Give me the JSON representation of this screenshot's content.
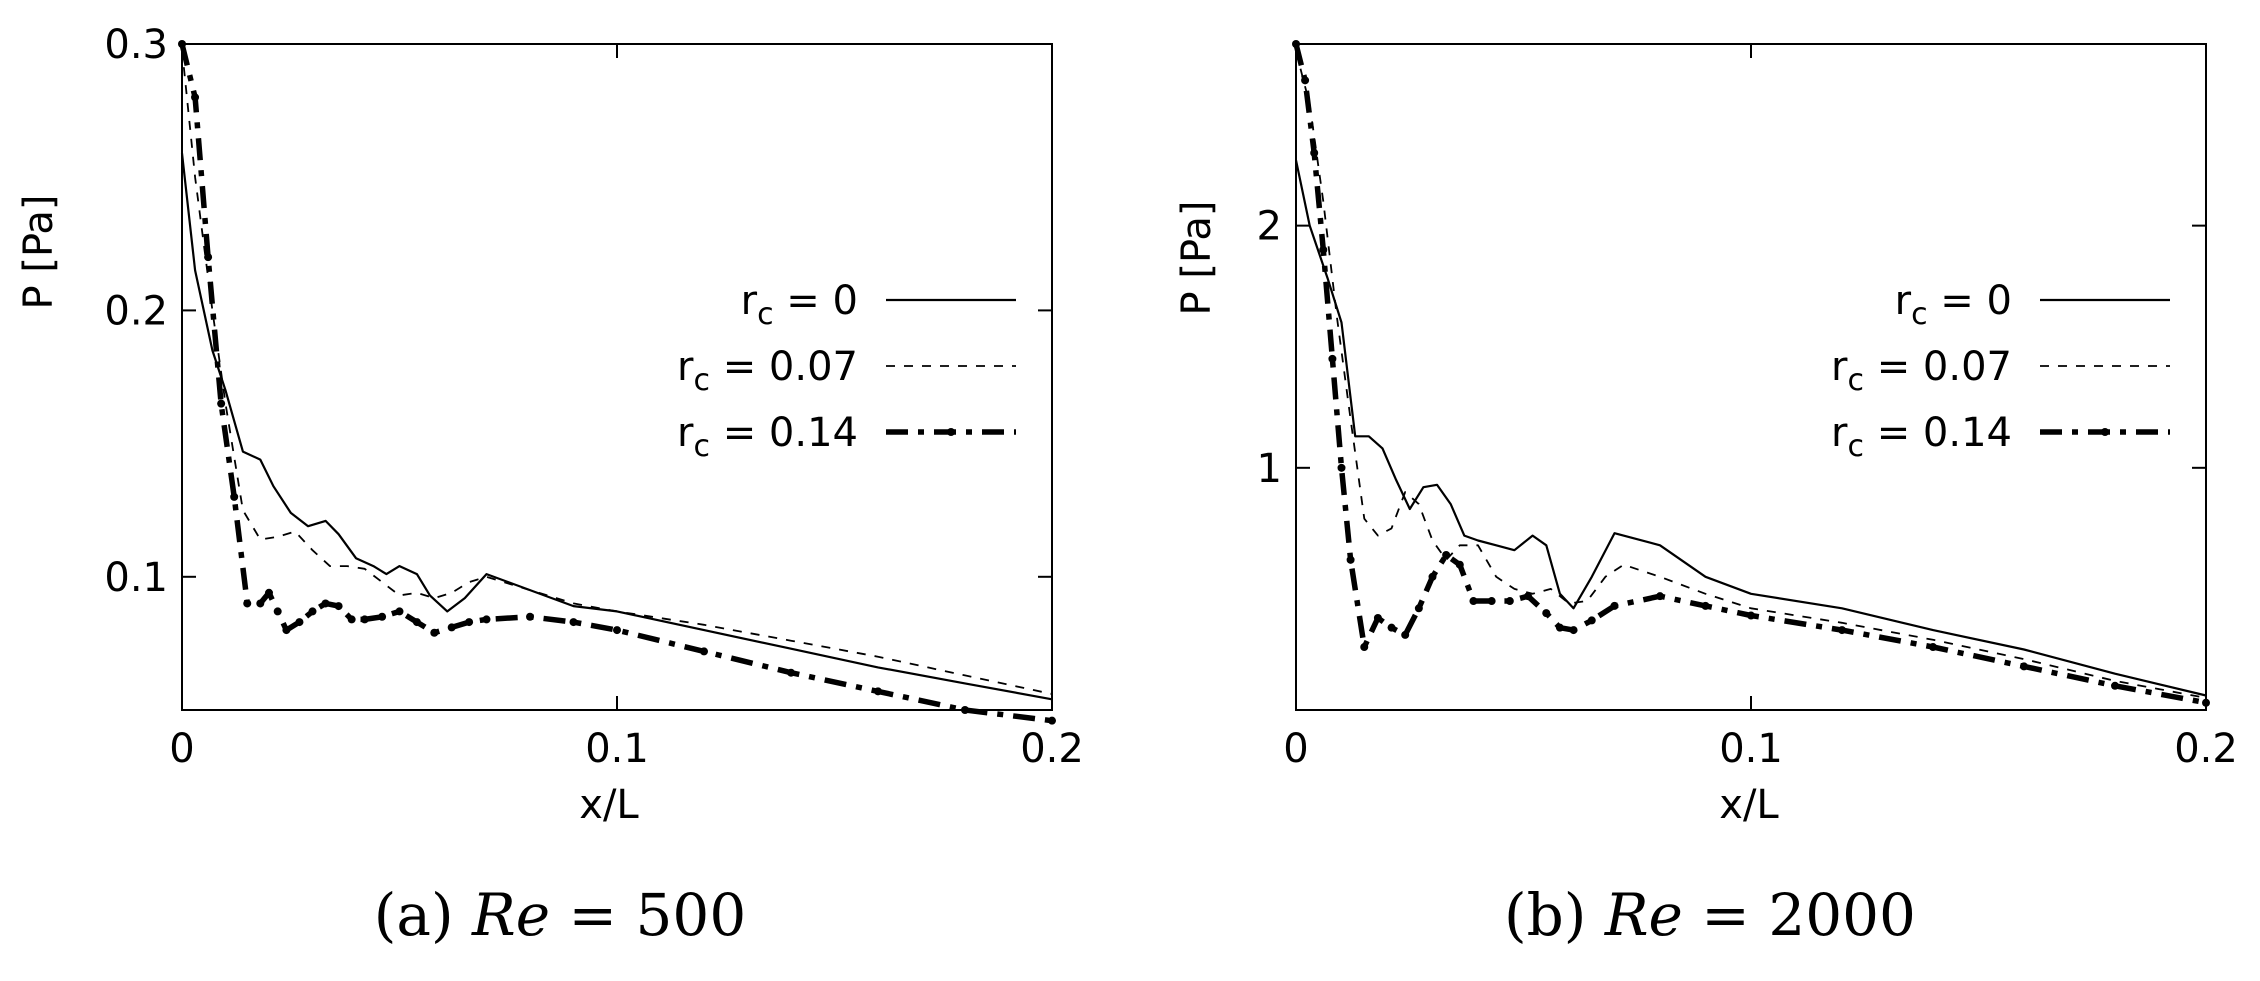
{
  "chart_data": [
    {
      "type": "line",
      "caption": {
        "label": "(a)",
        "variable": "Re",
        "equals": "=",
        "value": "500"
      },
      "xlabel": "x/L",
      "ylabel": "P [Pa]",
      "xlim": [
        0,
        0.2
      ],
      "ylim": [
        0.05,
        0.3
      ],
      "xticks": [
        0,
        0.1,
        0.2
      ],
      "xtick_labels": [
        "0",
        "0.1",
        "0.2"
      ],
      "yticks": [
        0.1,
        0.2,
        0.3
      ],
      "ytick_labels": [
        "0.1",
        "0.2",
        "0.3"
      ],
      "legend_position": "center-right",
      "series": [
        {
          "name": "r_c = 0",
          "style": "solid",
          "x": [
            0,
            0.003,
            0.007,
            0.01,
            0.014,
            0.018,
            0.021,
            0.025,
            0.029,
            0.033,
            0.036,
            0.04,
            0.044,
            0.047,
            0.05,
            0.054,
            0.057,
            0.061,
            0.065,
            0.07,
            0.08,
            0.09,
            0.1,
            0.12,
            0.14,
            0.16,
            0.18,
            0.2
          ],
          "y": [
            0.259,
            0.215,
            0.185,
            0.17,
            0.147,
            0.144,
            0.134,
            0.124,
            0.119,
            0.121,
            0.116,
            0.107,
            0.104,
            0.101,
            0.104,
            0.101,
            0.093,
            0.087,
            0.092,
            0.101,
            0.095,
            0.089,
            0.087,
            0.08,
            0.073,
            0.066,
            0.06,
            0.054
          ]
        },
        {
          "name": "r_c = 0.07",
          "style": "dashed",
          "x": [
            0,
            0.003,
            0.007,
            0.01,
            0.014,
            0.018,
            0.022,
            0.026,
            0.03,
            0.034,
            0.038,
            0.042,
            0.046,
            0.05,
            0.054,
            0.058,
            0.062,
            0.066,
            0.07,
            0.08,
            0.09,
            0.1,
            0.12,
            0.14,
            0.16,
            0.18,
            0.2
          ],
          "y": [
            0.298,
            0.25,
            0.2,
            0.165,
            0.125,
            0.114,
            0.115,
            0.117,
            0.11,
            0.104,
            0.104,
            0.103,
            0.098,
            0.093,
            0.094,
            0.092,
            0.094,
            0.098,
            0.1,
            0.095,
            0.09,
            0.087,
            0.082,
            0.076,
            0.07,
            0.063,
            0.056
          ]
        },
        {
          "name": "r_c = 0.14",
          "style": "dash-dot-points",
          "x": [
            0,
            0.003,
            0.006,
            0.009,
            0.012,
            0.015,
            0.018,
            0.02,
            0.022,
            0.024,
            0.027,
            0.03,
            0.033,
            0.036,
            0.039,
            0.042,
            0.046,
            0.05,
            0.054,
            0.058,
            0.062,
            0.066,
            0.07,
            0.08,
            0.09,
            0.1,
            0.12,
            0.14,
            0.16,
            0.18,
            0.2
          ],
          "y": [
            0.3,
            0.28,
            0.22,
            0.165,
            0.13,
            0.09,
            0.09,
            0.094,
            0.087,
            0.08,
            0.083,
            0.087,
            0.09,
            0.089,
            0.084,
            0.084,
            0.085,
            0.087,
            0.083,
            0.079,
            0.081,
            0.083,
            0.084,
            0.085,
            0.083,
            0.08,
            0.072,
            0.064,
            0.057,
            0.05,
            0.046
          ]
        }
      ]
    },
    {
      "type": "line",
      "caption": {
        "label": "(b)",
        "variable": "Re",
        "equals": "=",
        "value": "2000"
      },
      "xlabel": "x/L",
      "ylabel": "P [Pa]",
      "xlim": [
        0,
        0.2
      ],
      "ylim": [
        0,
        2.75
      ],
      "xticks": [
        0,
        0.1,
        0.2
      ],
      "xtick_labels": [
        "0",
        "0.1",
        "0.2"
      ],
      "yticks": [
        1,
        2
      ],
      "ytick_labels": [
        "1",
        "2"
      ],
      "legend_position": "center-right",
      "series": [
        {
          "name": "r_c = 0",
          "style": "solid",
          "x": [
            0,
            0.003,
            0.007,
            0.01,
            0.013,
            0.016,
            0.019,
            0.022,
            0.025,
            0.028,
            0.031,
            0.034,
            0.037,
            0.04,
            0.044,
            0.048,
            0.052,
            0.055,
            0.058,
            0.061,
            0.065,
            0.07,
            0.08,
            0.09,
            0.1,
            0.12,
            0.14,
            0.16,
            0.18,
            0.2
          ],
          "y": [
            2.27,
            2.0,
            1.78,
            1.6,
            1.13,
            1.13,
            1.08,
            0.95,
            0.83,
            0.92,
            0.93,
            0.85,
            0.72,
            0.7,
            0.68,
            0.66,
            0.72,
            0.68,
            0.48,
            0.42,
            0.55,
            0.73,
            0.68,
            0.55,
            0.48,
            0.42,
            0.33,
            0.25,
            0.15,
            0.06
          ]
        },
        {
          "name": "r_c = 0.07",
          "style": "dashed",
          "x": [
            0,
            0.003,
            0.006,
            0.009,
            0.012,
            0.015,
            0.018,
            0.021,
            0.024,
            0.027,
            0.03,
            0.033,
            0.036,
            0.04,
            0.044,
            0.048,
            0.052,
            0.056,
            0.06,
            0.064,
            0.068,
            0.072,
            0.08,
            0.09,
            0.1,
            0.12,
            0.14,
            0.16,
            0.18,
            0.2
          ],
          "y": [
            2.72,
            2.5,
            2.1,
            1.62,
            1.2,
            0.79,
            0.72,
            0.75,
            0.9,
            0.85,
            0.7,
            0.62,
            0.68,
            0.68,
            0.55,
            0.5,
            0.48,
            0.5,
            0.44,
            0.45,
            0.55,
            0.6,
            0.55,
            0.48,
            0.42,
            0.36,
            0.29,
            0.21,
            0.12,
            0.05
          ]
        },
        {
          "name": "r_c = 0.14",
          "style": "dash-dot-points",
          "x": [
            0,
            0.002,
            0.004,
            0.006,
            0.008,
            0.01,
            0.012,
            0.015,
            0.018,
            0.021,
            0.024,
            0.027,
            0.03,
            0.033,
            0.036,
            0.039,
            0.043,
            0.047,
            0.051,
            0.055,
            0.058,
            0.061,
            0.065,
            0.07,
            0.08,
            0.09,
            0.1,
            0.12,
            0.14,
            0.16,
            0.18,
            0.2
          ],
          "y": [
            2.75,
            2.6,
            2.3,
            1.9,
            1.45,
            1.0,
            0.62,
            0.26,
            0.38,
            0.34,
            0.31,
            0.42,
            0.55,
            0.64,
            0.6,
            0.45,
            0.45,
            0.45,
            0.47,
            0.4,
            0.34,
            0.33,
            0.37,
            0.43,
            0.47,
            0.43,
            0.39,
            0.33,
            0.26,
            0.18,
            0.1,
            0.03
          ]
        }
      ]
    }
  ]
}
